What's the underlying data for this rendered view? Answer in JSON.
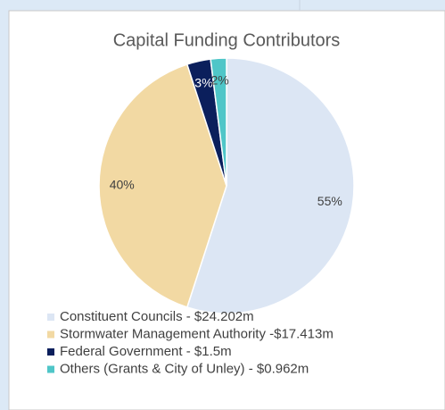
{
  "chart_data": {
    "type": "pie",
    "title": "Capital Funding Contributors",
    "categories": [
      "Constituent Councils - $24.202m",
      "Stormwater Management Authority -$17.413m",
      "Federal Government - $1.5m",
      "Others (Grants & City of Unley) - $0.962m"
    ],
    "values": [
      55,
      40,
      3,
      2
    ],
    "value_labels": [
      "55%",
      "40%",
      "3%",
      "2%"
    ],
    "colors": [
      "#dce6f4",
      "#f2d9a3",
      "#0b1f5c",
      "#4fc6c8"
    ]
  }
}
